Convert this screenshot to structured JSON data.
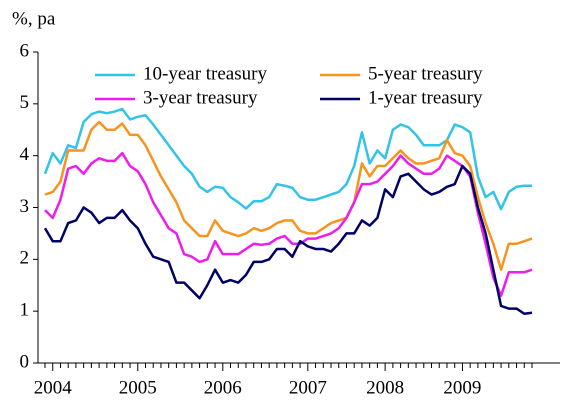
{
  "chart_data": {
    "type": "line",
    "y_label": "%, pa",
    "categories": [
      null,
      "2004",
      null,
      null,
      null,
      null,
      null,
      null,
      null,
      null,
      null,
      null,
      "2005",
      null,
      null,
      null,
      null,
      null,
      null,
      null,
      null,
      null,
      null,
      "2006",
      null,
      null,
      null,
      null,
      null,
      null,
      null,
      null,
      null,
      null,
      "2007",
      null,
      null,
      null,
      null,
      null,
      null,
      null,
      null,
      null,
      "2008",
      null,
      null,
      null,
      null,
      null,
      null,
      null,
      null,
      null,
      "2009",
      null,
      null,
      null,
      null,
      null,
      null,
      null,
      null,
      null
    ],
    "series": [
      {
        "name": "10-year treasury",
        "color": "#33c3e8",
        "values": [
          3.65,
          4.05,
          3.85,
          4.2,
          4.15,
          4.65,
          4.8,
          4.85,
          4.82,
          4.85,
          4.9,
          4.7,
          4.75,
          4.78,
          4.6,
          4.4,
          4.2,
          4.0,
          3.8,
          3.65,
          3.4,
          3.3,
          3.4,
          3.38,
          3.2,
          3.1,
          2.98,
          3.12,
          3.12,
          3.2,
          3.45,
          3.42,
          3.38,
          3.2,
          3.15,
          3.15,
          3.2,
          3.25,
          3.3,
          3.45,
          3.8,
          4.45,
          3.85,
          4.1,
          3.95,
          4.5,
          4.6,
          4.55,
          4.4,
          4.2,
          4.2,
          4.2,
          4.3,
          4.6,
          4.55,
          4.45,
          3.6,
          3.2,
          3.3,
          2.97,
          3.3,
          3.4,
          3.42,
          3.42
        ]
      },
      {
        "name": "5-year treasury",
        "color": "#f7941d",
        "values": [
          3.25,
          3.3,
          3.5,
          4.1,
          4.1,
          4.1,
          4.5,
          4.65,
          4.5,
          4.5,
          4.62,
          4.4,
          4.4,
          4.2,
          3.9,
          3.6,
          3.35,
          3.1,
          2.75,
          2.6,
          2.45,
          2.45,
          2.75,
          2.55,
          2.5,
          2.45,
          2.5,
          2.6,
          2.55,
          2.6,
          2.7,
          2.75,
          2.75,
          2.55,
          2.5,
          2.5,
          2.6,
          2.7,
          2.75,
          2.8,
          3.1,
          3.85,
          3.6,
          3.8,
          3.8,
          3.95,
          4.1,
          3.95,
          3.85,
          3.85,
          3.9,
          3.95,
          4.3,
          4.05,
          4.0,
          3.8,
          3.2,
          2.7,
          2.3,
          1.8,
          2.3,
          2.3,
          2.35,
          2.4
        ]
      },
      {
        "name": "3-year treasury",
        "color": "#ee1ced",
        "values": [
          2.95,
          2.8,
          3.15,
          3.75,
          3.8,
          3.65,
          3.85,
          3.95,
          3.9,
          3.9,
          4.05,
          3.8,
          3.7,
          3.45,
          3.1,
          2.85,
          2.6,
          2.5,
          2.1,
          2.05,
          1.95,
          2.0,
          2.35,
          2.1,
          2.1,
          2.1,
          2.2,
          2.3,
          2.28,
          2.3,
          2.4,
          2.45,
          2.3,
          2.3,
          2.4,
          2.4,
          2.45,
          2.5,
          2.6,
          2.8,
          3.1,
          3.45,
          3.45,
          3.5,
          3.65,
          3.8,
          4.0,
          3.85,
          3.75,
          3.65,
          3.65,
          3.75,
          4.0,
          3.9,
          3.8,
          3.6,
          2.9,
          2.3,
          1.65,
          1.3,
          1.75,
          1.75,
          1.75,
          1.8
        ]
      },
      {
        "name": "1-year treasury",
        "color": "#000066",
        "values": [
          2.6,
          2.35,
          2.35,
          2.7,
          2.75,
          3.0,
          2.9,
          2.7,
          2.8,
          2.8,
          2.95,
          2.75,
          2.6,
          2.3,
          2.05,
          2.0,
          1.95,
          1.55,
          1.55,
          1.4,
          1.25,
          1.5,
          1.8,
          1.55,
          1.6,
          1.55,
          1.7,
          1.95,
          1.95,
          2.0,
          2.2,
          2.2,
          2.05,
          2.35,
          2.25,
          2.2,
          2.2,
          2.15,
          2.3,
          2.5,
          2.5,
          2.75,
          2.65,
          2.8,
          3.35,
          3.2,
          3.6,
          3.65,
          3.5,
          3.35,
          3.25,
          3.3,
          3.4,
          3.45,
          3.8,
          3.65,
          3.0,
          2.5,
          1.8,
          1.1,
          1.05,
          1.05,
          0.95,
          0.97
        ]
      }
    ],
    "ylim": [
      0,
      6
    ],
    "yticks": [
      0,
      1,
      2,
      3,
      4,
      5,
      6
    ]
  }
}
